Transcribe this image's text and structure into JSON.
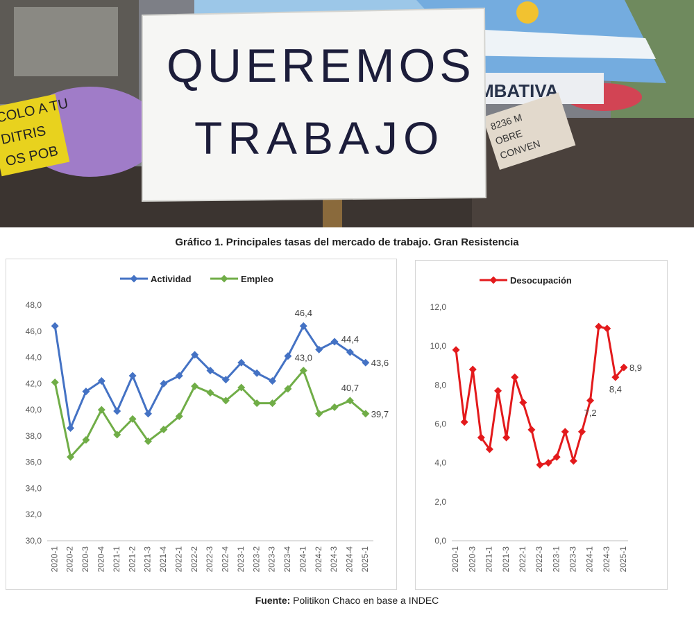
{
  "photo": {
    "sign_line1": "QUEREMOS",
    "sign_line2": "TRABAJO",
    "yellow_sign_line1": "COLO A TU",
    "yellow_sign_line2": "DITRIS",
    "yellow_sign_line3": "OS POB",
    "banner_text": "MBATIVA",
    "small_sign_line1": "8236 M",
    "small_sign_line2": "OBRE",
    "small_sign_line3": "CONVEN",
    "colors": {
      "sky": "#9cc7e8",
      "sign": "#f6f6f4",
      "ink": "#1c1d3a",
      "yellow": "#e8d21e",
      "umbrella": "#a07cc8",
      "flag": "#74acdf"
    }
  },
  "title": "Gráfico 1. Principales tasas del mercado de trabajo. Gran Resistencia",
  "source": {
    "label": "Fuente:",
    "text": " Politikon Chaco en base a INDEC"
  },
  "chart_data": [
    {
      "type": "line",
      "x": [
        "2020-1",
        "2020-2",
        "2020-3",
        "2020-4",
        "2021-1",
        "2021-2",
        "2021-3",
        "2021-4",
        "2022-1",
        "2022-2",
        "2022-3",
        "2022-4",
        "2023-1",
        "2023-2",
        "2023-3",
        "2023-4",
        "2024-1",
        "2024-2",
        "2024-3",
        "2024-4",
        "2025-1"
      ],
      "ylim": [
        30,
        48
      ],
      "yticks": [
        "30,0",
        "32,0",
        "34,0",
        "36,0",
        "38,0",
        "40,0",
        "42,0",
        "44,0",
        "46,0",
        "48,0"
      ],
      "grid": false,
      "legend": "top",
      "series": [
        {
          "name": "Actividad",
          "color": "#4472c4",
          "values": [
            46.4,
            38.6,
            41.4,
            42.2,
            39.9,
            42.6,
            39.7,
            42.0,
            42.6,
            44.2,
            43.0,
            42.3,
            43.6,
            42.8,
            42.2,
            44.1,
            46.4,
            44.6,
            45.2,
            44.4,
            43.6
          ],
          "labels": [
            {
              "i": 16,
              "text": "46,4",
              "pos": "above"
            },
            {
              "i": 19,
              "text": "44,4",
              "pos": "above"
            },
            {
              "i": 20,
              "text": "43,6",
              "pos": "right"
            }
          ]
        },
        {
          "name": "Empleo",
          "color": "#70ad47",
          "values": [
            42.1,
            36.4,
            37.7,
            40.0,
            38.1,
            39.3,
            37.6,
            38.5,
            39.5,
            41.8,
            41.3,
            40.7,
            41.7,
            40.5,
            40.5,
            41.6,
            43.0,
            39.7,
            40.2,
            40.7,
            39.7
          ],
          "labels": [
            {
              "i": 16,
              "text": "43,0",
              "pos": "above"
            },
            {
              "i": 19,
              "text": "40,7",
              "pos": "above"
            },
            {
              "i": 20,
              "text": "39,7",
              "pos": "right"
            }
          ]
        }
      ]
    },
    {
      "type": "line",
      "x": [
        "2020-1",
        "2020-2",
        "2020-3",
        "2020-4",
        "2021-1",
        "2021-2",
        "2021-3",
        "2021-4",
        "2022-1",
        "2022-2",
        "2022-3",
        "2022-4",
        "2023-1",
        "2023-2",
        "2023-3",
        "2023-4",
        "2024-1",
        "2024-2",
        "2024-3",
        "2024-4",
        "2025-1"
      ],
      "xtick_labels": [
        "2020-1",
        "2020-3",
        "2021-1",
        "2021-3",
        "2022-1",
        "2022-3",
        "2023-1",
        "2023-3",
        "2024-1",
        "2024-3",
        "2025-1"
      ],
      "ylim": [
        0,
        12
      ],
      "yticks": [
        "0,0",
        "2,0",
        "4,0",
        "6,0",
        "8,0",
        "10,0",
        "12,0"
      ],
      "grid": false,
      "legend": "top",
      "series": [
        {
          "name": "Desocupación",
          "color": "#e31a1c",
          "values": [
            9.8,
            6.1,
            8.8,
            5.3,
            4.7,
            7.7,
            5.3,
            8.4,
            7.1,
            5.7,
            3.9,
            4.0,
            4.3,
            5.6,
            4.1,
            5.6,
            7.2,
            11.0,
            10.9,
            8.4,
            8.9
          ],
          "labels": [
            {
              "i": 16,
              "text": "7,2",
              "pos": "below"
            },
            {
              "i": 19,
              "text": "8,4",
              "pos": "below"
            },
            {
              "i": 20,
              "text": "8,9",
              "pos": "right"
            }
          ]
        }
      ]
    }
  ]
}
